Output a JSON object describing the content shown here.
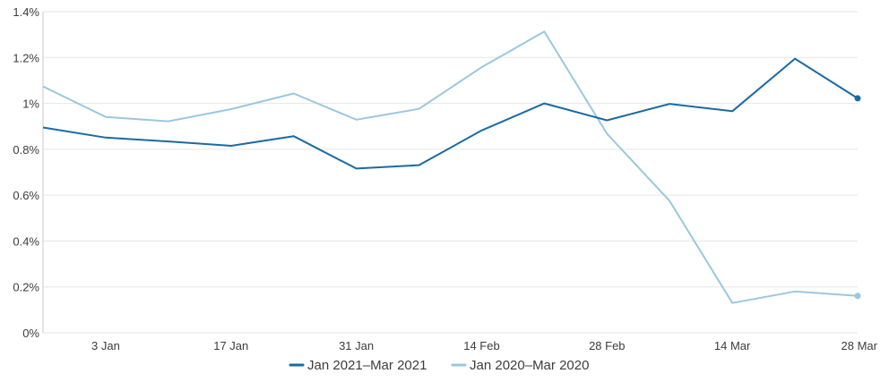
{
  "chart_data": {
    "type": "line",
    "x_ticks": [
      "3 Jan",
      "17 Jan",
      "31 Jan",
      "14 Feb",
      "28 Feb",
      "14 Mar",
      "28 Mar"
    ],
    "y_ticks": [
      "0%",
      "0.2%",
      "0.4%",
      "0.6%",
      "0.8%",
      "1%",
      "1.2%",
      "1.4%"
    ],
    "ylim": [
      0,
      1.4
    ],
    "y_unit": "%",
    "grid": true,
    "legend_position": "bottom",
    "series": [
      {
        "name": "Jan 2021–Mar 2021",
        "color": "#1a6aa3",
        "values": [
          0.895,
          0.851,
          0.834,
          0.815,
          0.857,
          0.716,
          0.731,
          0.882,
          1.0,
          0.926,
          0.998,
          0.966,
          1.195,
          1.022
        ]
      },
      {
        "name": "Jan 2020–Mar 2020",
        "color": "#9bc7df",
        "values": [
          1.074,
          0.941,
          0.922,
          0.975,
          1.043,
          0.929,
          0.976,
          1.158,
          1.313,
          0.868,
          0.575,
          0.13,
          0.18,
          0.161
        ]
      }
    ]
  }
}
